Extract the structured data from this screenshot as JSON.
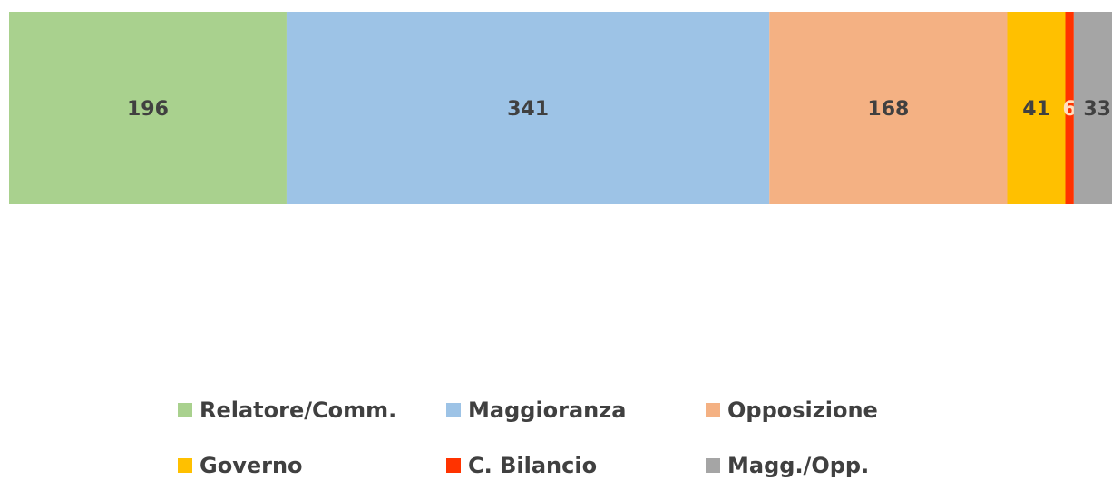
{
  "chart_data": {
    "type": "stacked-bar",
    "series": [
      {
        "name": "Relatore/Comm.",
        "color": "#a9d18e",
        "values": [
          196
        ]
      },
      {
        "name": "Maggioranza",
        "color": "#9dc3e6",
        "values": [
          341
        ]
      },
      {
        "name": "Opposizione",
        "color": "#f4b183",
        "values": [
          168
        ]
      },
      {
        "name": "Governo",
        "color": "#ffc000",
        "values": [
          41
        ]
      },
      {
        "name": "C. Bilancio",
        "color": "#ff3300",
        "values": [
          6
        ],
        "label_color": "#ffe0c0"
      },
      {
        "name": "Magg./Opp.",
        "color": "#a5a5a5",
        "values": [
          33
        ]
      }
    ],
    "label_color": "#404040",
    "legend": "bottom"
  }
}
